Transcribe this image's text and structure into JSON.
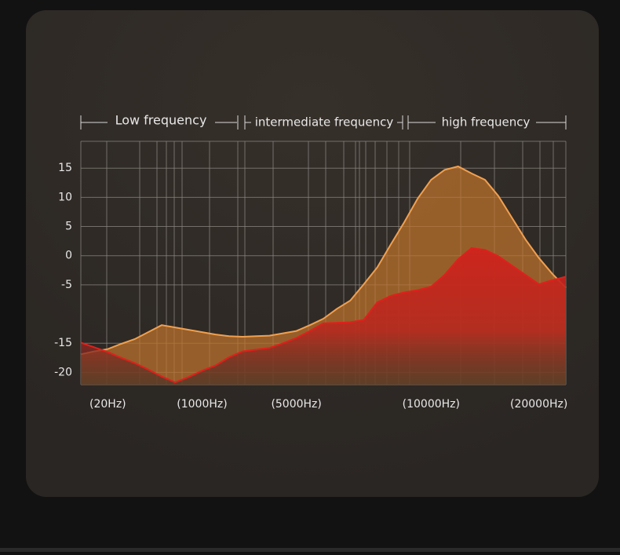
{
  "chart_data": {
    "type": "area",
    "bands": [
      "Low frequency",
      "intermediate frequency",
      "high frequency"
    ],
    "categories": [
      null,
      null,
      "(20Hz)",
      null,
      null,
      null,
      null,
      null,
      null,
      "(1000Hz)",
      null,
      null,
      null,
      null,
      null,
      null,
      "(5000Hz)",
      null,
      null,
      null,
      null,
      null,
      null,
      null,
      null,
      null,
      "(10000Hz)",
      null,
      null,
      null,
      null,
      null,
      null,
      null,
      "(20000Hz)",
      null,
      null
    ],
    "series": [
      {
        "color": "#f0a050",
        "values": [
          -16.9,
          -16.4,
          -16.0,
          -15.1,
          -14.3,
          -13.1,
          -11.9,
          -12.3,
          -12.7,
          -13.1,
          -13.5,
          -13.8,
          -13.9,
          -13.8,
          -13.7,
          -13.3,
          -12.9,
          -11.9,
          -10.8,
          -9.1,
          -7.7,
          -4.9,
          -2.0,
          1.9,
          5.7,
          9.8,
          13.0,
          14.7,
          15.3,
          14.1,
          13.0,
          10.2,
          6.5,
          2.8,
          -0.4,
          -3.1,
          -5.5
        ]
      },
      {
        "color": "#e0201c",
        "values": [
          -14.9,
          -15.7,
          -16.5,
          -17.5,
          -18.4,
          -19.5,
          -20.7,
          -21.7,
          -20.8,
          -19.7,
          -18.8,
          -17.4,
          -16.4,
          -16.1,
          -15.8,
          -15.0,
          -14.1,
          -12.9,
          -11.6,
          -11.5,
          -11.4,
          -11.0,
          -8.0,
          -6.9,
          -6.3,
          -5.9,
          -5.3,
          -3.3,
          -0.6,
          1.3,
          1.0,
          -0.1,
          -1.7,
          -3.3,
          -4.9,
          -4.2,
          -3.6
        ]
      }
    ],
    "ylim": [
      -22.1,
      19.6
    ],
    "yticks": [
      15,
      10,
      5,
      0,
      -5,
      -15,
      -20
    ],
    "grid": true
  }
}
